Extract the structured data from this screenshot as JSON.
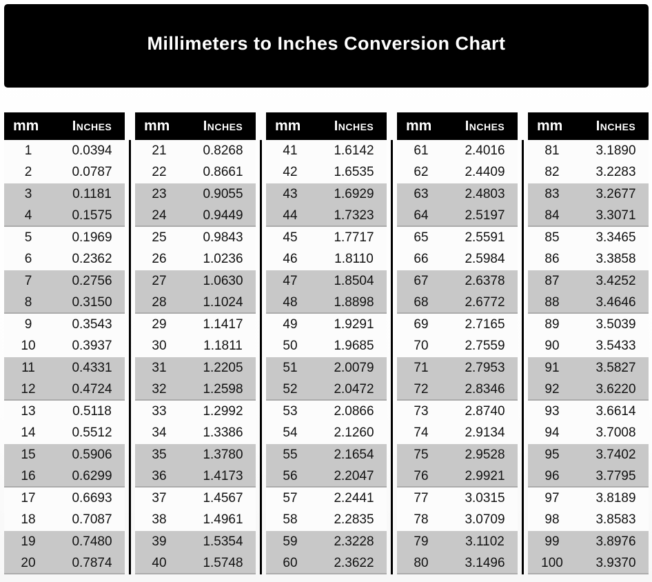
{
  "title": "Millimeters to Inches Conversion Chart",
  "table": {
    "header_mm": "mm",
    "header_inches": "Inches"
  },
  "colors": {
    "banner_bg": "#000000",
    "banner_text": "#ffffff",
    "header_bg": "#000000",
    "header_text": "#ffffff",
    "row_plain": "#fcfcfc",
    "row_shaded": "#c8c8c8",
    "divider": "#000000",
    "value_text": "#111111"
  },
  "chart_data": {
    "type": "table",
    "title": "Millimeters to Inches Conversion Chart",
    "columns": [
      "mm",
      "Inches"
    ],
    "layout": {
      "column_groups": 5,
      "rows_per_group": 20,
      "row_shading": "alternating pairs (2 plain, 2 shaded)",
      "legend_position": "none",
      "grid": "off"
    },
    "rows": [
      [
        1,
        "0.0394"
      ],
      [
        2,
        "0.0787"
      ],
      [
        3,
        "0.1181"
      ],
      [
        4,
        "0.1575"
      ],
      [
        5,
        "0.1969"
      ],
      [
        6,
        "0.2362"
      ],
      [
        7,
        "0.2756"
      ],
      [
        8,
        "0.3150"
      ],
      [
        9,
        "0.3543"
      ],
      [
        10,
        "0.3937"
      ],
      [
        11,
        "0.4331"
      ],
      [
        12,
        "0.4724"
      ],
      [
        13,
        "0.5118"
      ],
      [
        14,
        "0.5512"
      ],
      [
        15,
        "0.5906"
      ],
      [
        16,
        "0.6299"
      ],
      [
        17,
        "0.6693"
      ],
      [
        18,
        "0.7087"
      ],
      [
        19,
        "0.7480"
      ],
      [
        20,
        "0.7874"
      ],
      [
        21,
        "0.8268"
      ],
      [
        22,
        "0.8661"
      ],
      [
        23,
        "0.9055"
      ],
      [
        24,
        "0.9449"
      ],
      [
        25,
        "0.9843"
      ],
      [
        26,
        "1.0236"
      ],
      [
        27,
        "1.0630"
      ],
      [
        28,
        "1.1024"
      ],
      [
        29,
        "1.1417"
      ],
      [
        30,
        "1.1811"
      ],
      [
        31,
        "1.2205"
      ],
      [
        32,
        "1.2598"
      ],
      [
        33,
        "1.2992"
      ],
      [
        34,
        "1.3386"
      ],
      [
        35,
        "1.3780"
      ],
      [
        36,
        "1.4173"
      ],
      [
        37,
        "1.4567"
      ],
      [
        38,
        "1.4961"
      ],
      [
        39,
        "1.5354"
      ],
      [
        40,
        "1.5748"
      ],
      [
        41,
        "1.6142"
      ],
      [
        42,
        "1.6535"
      ],
      [
        43,
        "1.6929"
      ],
      [
        44,
        "1.7323"
      ],
      [
        45,
        "1.7717"
      ],
      [
        46,
        "1.8110"
      ],
      [
        47,
        "1.8504"
      ],
      [
        48,
        "1.8898"
      ],
      [
        49,
        "1.9291"
      ],
      [
        50,
        "1.9685"
      ],
      [
        51,
        "2.0079"
      ],
      [
        52,
        "2.0472"
      ],
      [
        53,
        "2.0866"
      ],
      [
        54,
        "2.1260"
      ],
      [
        55,
        "2.1654"
      ],
      [
        56,
        "2.2047"
      ],
      [
        57,
        "2.2441"
      ],
      [
        58,
        "2.2835"
      ],
      [
        59,
        "2.3228"
      ],
      [
        60,
        "2.3622"
      ],
      [
        61,
        "2.4016"
      ],
      [
        62,
        "2.4409"
      ],
      [
        63,
        "2.4803"
      ],
      [
        64,
        "2.5197"
      ],
      [
        65,
        "2.5591"
      ],
      [
        66,
        "2.5984"
      ],
      [
        67,
        "2.6378"
      ],
      [
        68,
        "2.6772"
      ],
      [
        69,
        "2.7165"
      ],
      [
        70,
        "2.7559"
      ],
      [
        71,
        "2.7953"
      ],
      [
        72,
        "2.8346"
      ],
      [
        73,
        "2.8740"
      ],
      [
        74,
        "2.9134"
      ],
      [
        75,
        "2.9528"
      ],
      [
        76,
        "2.9921"
      ],
      [
        77,
        "3.0315"
      ],
      [
        78,
        "3.0709"
      ],
      [
        79,
        "3.1102"
      ],
      [
        80,
        "3.1496"
      ],
      [
        81,
        "3.1890"
      ],
      [
        82,
        "3.2283"
      ],
      [
        83,
        "3.2677"
      ],
      [
        84,
        "3.3071"
      ],
      [
        85,
        "3.3465"
      ],
      [
        86,
        "3.3858"
      ],
      [
        87,
        "3.4252"
      ],
      [
        88,
        "3.4646"
      ],
      [
        89,
        "3.5039"
      ],
      [
        90,
        "3.5433"
      ],
      [
        91,
        "3.5827"
      ],
      [
        92,
        "3.6220"
      ],
      [
        93,
        "3.6614"
      ],
      [
        94,
        "3.7008"
      ],
      [
        95,
        "3.7402"
      ],
      [
        96,
        "3.7795"
      ],
      [
        97,
        "3.8189"
      ],
      [
        98,
        "3.8583"
      ],
      [
        99,
        "3.8976"
      ],
      [
        100,
        "3.9370"
      ]
    ]
  }
}
